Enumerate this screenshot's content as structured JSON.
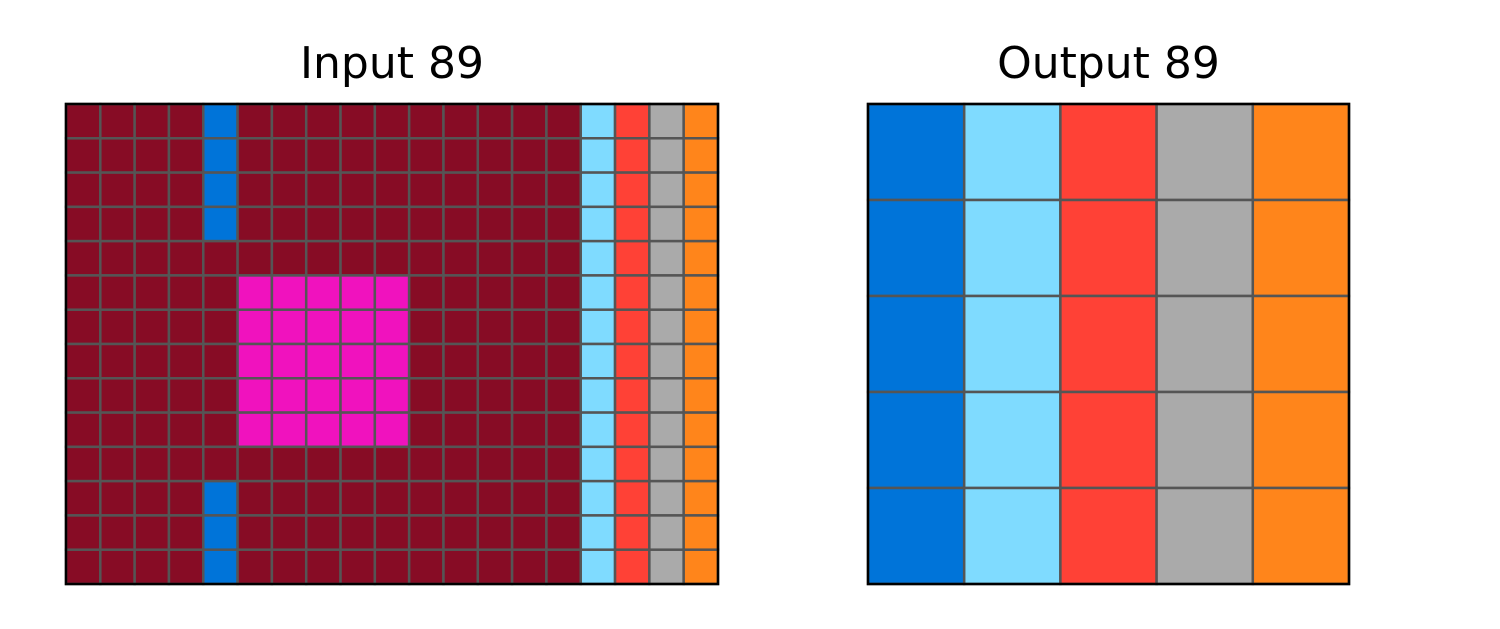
{
  "palette": {
    "0": "#000000",
    "1": "#0074d9",
    "2": "#ff4136",
    "3": "#2ecc40",
    "4": "#ffdc00",
    "5": "#aaaaaa",
    "6": "#f012be",
    "7": "#ff851b",
    "8": "#7fdbff",
    "9": "#870c25"
  },
  "grid_line_color": "#555555",
  "border_color": "#000000",
  "panels": [
    {
      "title": "Input 89",
      "rows": [
        "9999199999999998257",
        "9999199999999998257",
        "9999199999999998257",
        "9999199999999998257",
        "9999999999999998257",
        "9999966666999998257",
        "9999966666999998257",
        "9999966666999998257",
        "9999966666999998257",
        "9999966666999998257",
        "9999999999999998257",
        "9999199999999998257",
        "9999199999999998257",
        "9999199999999998257"
      ]
    },
    {
      "title": "Output 89",
      "rows": [
        "18257",
        "18257",
        "18257",
        "18257",
        "18257"
      ]
    }
  ]
}
